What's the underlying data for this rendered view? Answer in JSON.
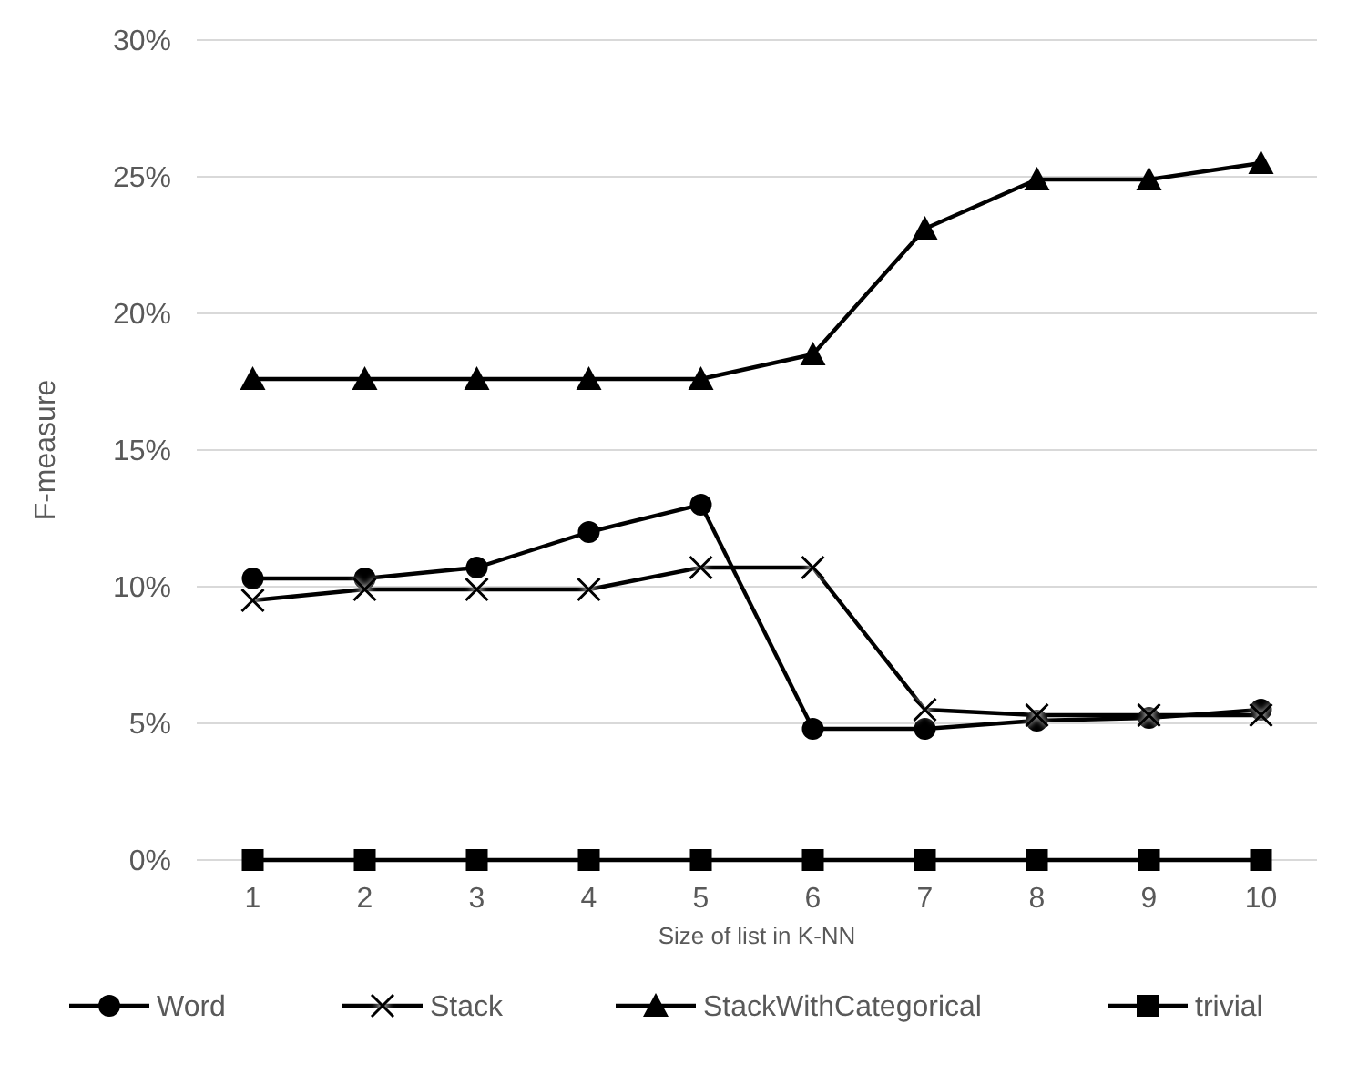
{
  "chart_data": {
    "type": "line",
    "xlabel": "Size of list in K-NN",
    "ylabel": "F-measure",
    "categories": [
      "1",
      "2",
      "3",
      "4",
      "5",
      "6",
      "7",
      "8",
      "9",
      "10"
    ],
    "ylim": [
      0,
      30
    ],
    "yticks": [
      {
        "value": 0,
        "label": "0%"
      },
      {
        "value": 5,
        "label": "5%"
      },
      {
        "value": 10,
        "label": "10%"
      },
      {
        "value": 15,
        "label": "15%"
      },
      {
        "value": 20,
        "label": "20%"
      },
      {
        "value": 25,
        "label": "25%"
      },
      {
        "value": 30,
        "label": "30%"
      }
    ],
    "grid": "y",
    "legend": "bottom",
    "line_style": "solid",
    "series": [
      {
        "name": "Word",
        "color": "#000000",
        "marker": "circle",
        "values": [
          10.3,
          10.3,
          10.7,
          12.0,
          13.0,
          4.8,
          4.8,
          5.1,
          5.2,
          5.5
        ]
      },
      {
        "name": "Stack",
        "color": "#000000",
        "marker": "cross",
        "values": [
          9.5,
          9.9,
          9.9,
          9.9,
          10.7,
          10.7,
          5.5,
          5.3,
          5.3,
          5.3
        ]
      },
      {
        "name": "StackWithCategorical",
        "color": "#000000",
        "marker": "triangle",
        "values": [
          17.6,
          17.6,
          17.6,
          17.6,
          17.6,
          18.5,
          23.1,
          24.9,
          24.9,
          25.5
        ]
      },
      {
        "name": "trivial",
        "color": "#000000",
        "marker": "square",
        "values": [
          0,
          0,
          0,
          0,
          0,
          0,
          0,
          0,
          0,
          0
        ]
      }
    ]
  }
}
